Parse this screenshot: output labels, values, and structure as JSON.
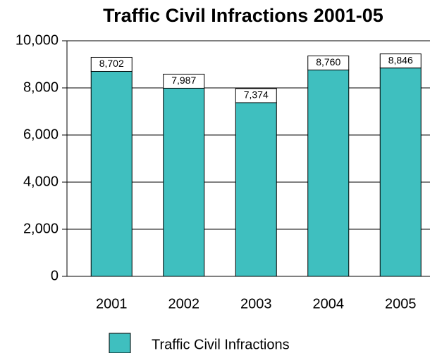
{
  "chart_data": {
    "type": "bar",
    "title": "Traffic Civil Infractions 2001-05",
    "categories": [
      "2001",
      "2002",
      "2003",
      "2004",
      "2005"
    ],
    "series": [
      {
        "name": "Traffic Civil Infractions",
        "color": "#3fbfbf",
        "values": [
          8702,
          7987,
          7374,
          8760,
          8846
        ],
        "value_labels": [
          "8,702",
          "7,987",
          "7,374",
          "8,760",
          "8,846"
        ]
      }
    ],
    "ylim": [
      0,
      10000
    ],
    "yticks": [
      0,
      {
        "value": 2000,
        "label": "2,000"
      },
      {
        "value": 4000,
        "label": "4,000"
      },
      {
        "value": 6000,
        "label": "6,000"
      },
      {
        "value": 8000,
        "label": "8,000"
      },
      {
        "value": 10000,
        "label": "10,000"
      }
    ],
    "grid": true,
    "legend": "bottom"
  }
}
